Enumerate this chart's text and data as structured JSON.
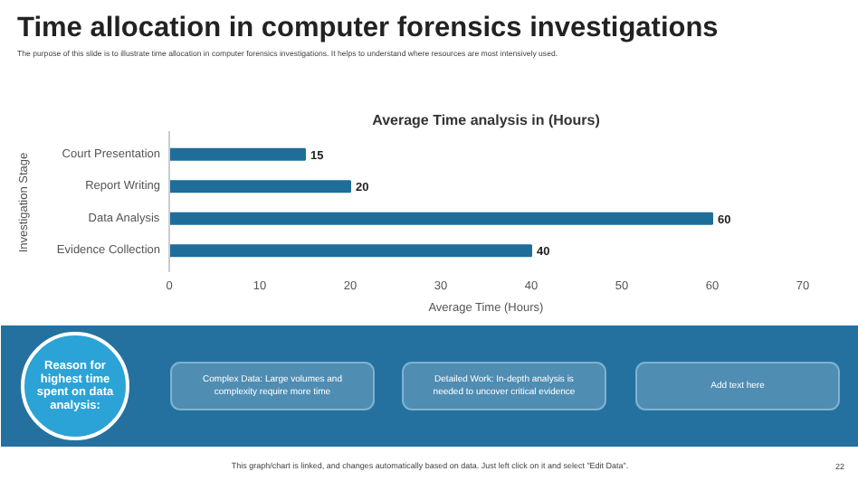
{
  "chart_data": [
    {
      "type": "other",
      "title": "Time allocation in computer forensics investigations",
      "subtitle": "The purpose of this slide is to illustrate time allocation in computer forensics investigations. It helps to understand where resources are most intensively used."
    },
    {
      "type": "bar",
      "orientation": "horizontal",
      "title": "Average Time analysis in (Hours)",
      "xlabel": "Average Time (Hours)",
      "ylabel": "Investigation Stage",
      "categories": [
        "Court Presentation",
        "Report Writing",
        "Data Analysis",
        "Evidence Collection"
      ],
      "values": [
        15,
        20,
        60,
        40
      ],
      "color": "#1f6e9a",
      "xlim": [
        0,
        70
      ],
      "xticks": [
        0,
        10,
        20,
        30,
        40,
        50,
        60,
        70
      ],
      "data_labels": true
    },
    {
      "type": "other",
      "annotations": [
        "Reason for highest time spent on data analysis:",
        "Complex Data: Large volumes and complexity require more time",
        "Detailed Work: In-depth analysis is needed to uncover critical evidence",
        "Add text here",
        "This graph/chart is linked, and changes automatically based on data. Just left click on it and select \"Edit Data\".",
        "22"
      ]
    }
  ]
}
